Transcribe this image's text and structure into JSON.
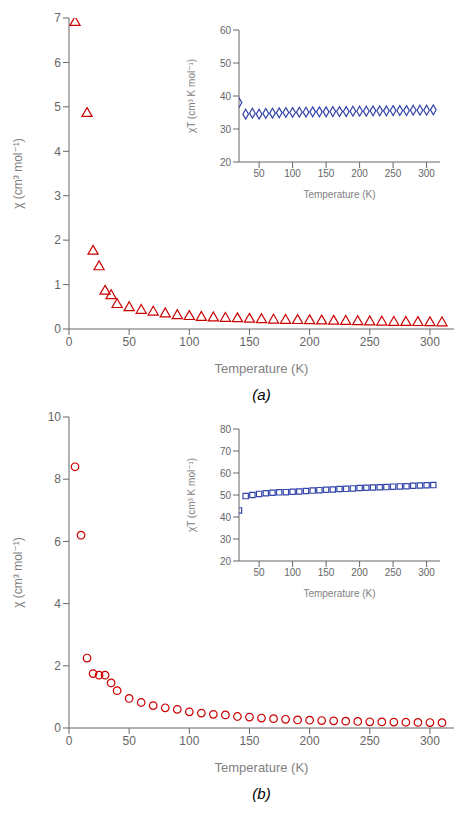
{
  "chart_data": [
    {
      "type": "scatter",
      "x": [
        5.0,
        15.0,
        20.0,
        25.0,
        30.0,
        35.0,
        40.0,
        50.0,
        60.0,
        70.0,
        80.0,
        90.0,
        100.0,
        110.0,
        120.0,
        130.0,
        140.0,
        150.0,
        160.0,
        170.0,
        180.0,
        190.0,
        200.0,
        210.0,
        220.0,
        230.0,
        240.0,
        250.0,
        260.0,
        270.0,
        280.0,
        290.0,
        300.0,
        310.0
      ],
      "values": [
        6.9,
        4.85,
        1.75,
        1.4,
        0.85,
        0.75,
        0.55,
        0.48,
        0.42,
        0.38,
        0.34,
        0.3,
        0.28,
        0.26,
        0.25,
        0.24,
        0.23,
        0.22,
        0.21,
        0.2,
        0.195,
        0.19,
        0.185,
        0.18,
        0.175,
        0.17,
        0.165,
        0.16,
        0.155,
        0.15,
        0.148,
        0.145,
        0.14,
        0.138
      ],
      "xlabel": "Temperature (K)",
      "ylabel": "χ (cm³ mol⁻¹)",
      "xlim": [
        0,
        320
      ],
      "ylim": [
        0,
        7
      ],
      "xticks": [
        0,
        50,
        100,
        150,
        200,
        250,
        300
      ],
      "yticks": [
        0,
        1,
        2,
        3,
        4,
        5,
        6,
        7
      ],
      "color": "#cc0000",
      "marker": "triangle",
      "grid": false,
      "annotations": [
        "(a)"
      ]
    },
    {
      "type": "scatter",
      "x": [
        20.0,
        30.0,
        40.0,
        50.0,
        60.0,
        70.0,
        80.0,
        90.0,
        100.0,
        110.0,
        120.0,
        130.0,
        140.0,
        150.0,
        160.0,
        170.0,
        180.0,
        190.0,
        200.0,
        210.0,
        220.0,
        230.0,
        240.0,
        250.0,
        260.0,
        270.0,
        280.0,
        290.0,
        300.0,
        310.0
      ],
      "values": [
        38.0,
        34.5,
        34.8,
        34.5,
        34.7,
        34.8,
        34.9,
        35.0,
        35.0,
        35.1,
        35.1,
        35.2,
        35.2,
        35.2,
        35.3,
        35.3,
        35.3,
        35.4,
        35.4,
        35.4,
        35.5,
        35.5,
        35.5,
        35.6,
        35.6,
        35.6,
        35.7,
        35.7,
        35.7,
        35.8
      ],
      "xlabel": "Temperature (K)",
      "ylabel": "χT (cm³ K mol⁻¹)",
      "xlim": [
        20,
        320
      ],
      "ylim": [
        20,
        60
      ],
      "xticks": [
        50,
        100,
        150,
        200,
        250,
        300
      ],
      "yticks": [
        20,
        30,
        40,
        50,
        60
      ],
      "color": "#3344aa",
      "marker": "diamond",
      "grid": false
    },
    {
      "type": "scatter",
      "x": [
        5.0,
        10.0,
        15.0,
        20.0,
        25.0,
        30.0,
        35.0,
        40.0,
        50.0,
        60.0,
        70.0,
        80.0,
        90.0,
        100.0,
        110.0,
        120.0,
        130.0,
        140.0,
        150.0,
        160.0,
        170.0,
        180.0,
        190.0,
        200.0,
        210.0,
        220.0,
        230.0,
        240.0,
        250.0,
        260.0,
        270.0,
        280.0,
        290.0,
        300.0,
        310.0
      ],
      "values": [
        8.4,
        6.2,
        2.25,
        1.75,
        1.7,
        1.7,
        1.45,
        1.2,
        0.95,
        0.82,
        0.72,
        0.65,
        0.6,
        0.52,
        0.48,
        0.44,
        0.42,
        0.37,
        0.35,
        0.32,
        0.3,
        0.28,
        0.26,
        0.25,
        0.24,
        0.23,
        0.22,
        0.21,
        0.2,
        0.195,
        0.19,
        0.185,
        0.18,
        0.175,
        0.17
      ],
      "xlabel": "Temperature (K)",
      "ylabel": "χ (cm³ mol⁻¹)",
      "xlim": [
        0,
        320
      ],
      "ylim": [
        0,
        10
      ],
      "xticks": [
        0,
        50,
        100,
        150,
        200,
        250,
        300
      ],
      "yticks": [
        0,
        2,
        4,
        6,
        8,
        10
      ],
      "color": "#cc0000",
      "marker": "circle",
      "grid": false,
      "annotations": [
        "(b)"
      ]
    },
    {
      "type": "scatter",
      "x": [
        20.0,
        30.0,
        40.0,
        50.0,
        60.0,
        70.0,
        80.0,
        90.0,
        100.0,
        110.0,
        120.0,
        130.0,
        140.0,
        150.0,
        160.0,
        170.0,
        180.0,
        190.0,
        200.0,
        210.0,
        220.0,
        230.0,
        240.0,
        250.0,
        260.0,
        270.0,
        280.0,
        290.0,
        300.0,
        310.0
      ],
      "values": [
        43.0,
        49.5,
        50.0,
        50.5,
        50.8,
        51.0,
        51.2,
        51.3,
        51.5,
        51.6,
        51.8,
        52.0,
        52.2,
        52.4,
        52.5,
        52.7,
        52.8,
        53.0,
        53.2,
        53.3,
        53.4,
        53.5,
        53.6,
        53.8,
        53.9,
        54.0,
        54.2,
        54.3,
        54.4,
        54.5
      ],
      "xlabel": "Temperature (K)",
      "ylabel": "χT (cm³ K mol⁻¹)",
      "xlim": [
        20,
        320
      ],
      "ylim": [
        20,
        80
      ],
      "xticks": [
        50,
        100,
        150,
        200,
        250,
        300
      ],
      "yticks": [
        20,
        30,
        40,
        50,
        60,
        70,
        80
      ],
      "color": "#3344aa",
      "marker": "square",
      "grid": false
    }
  ]
}
